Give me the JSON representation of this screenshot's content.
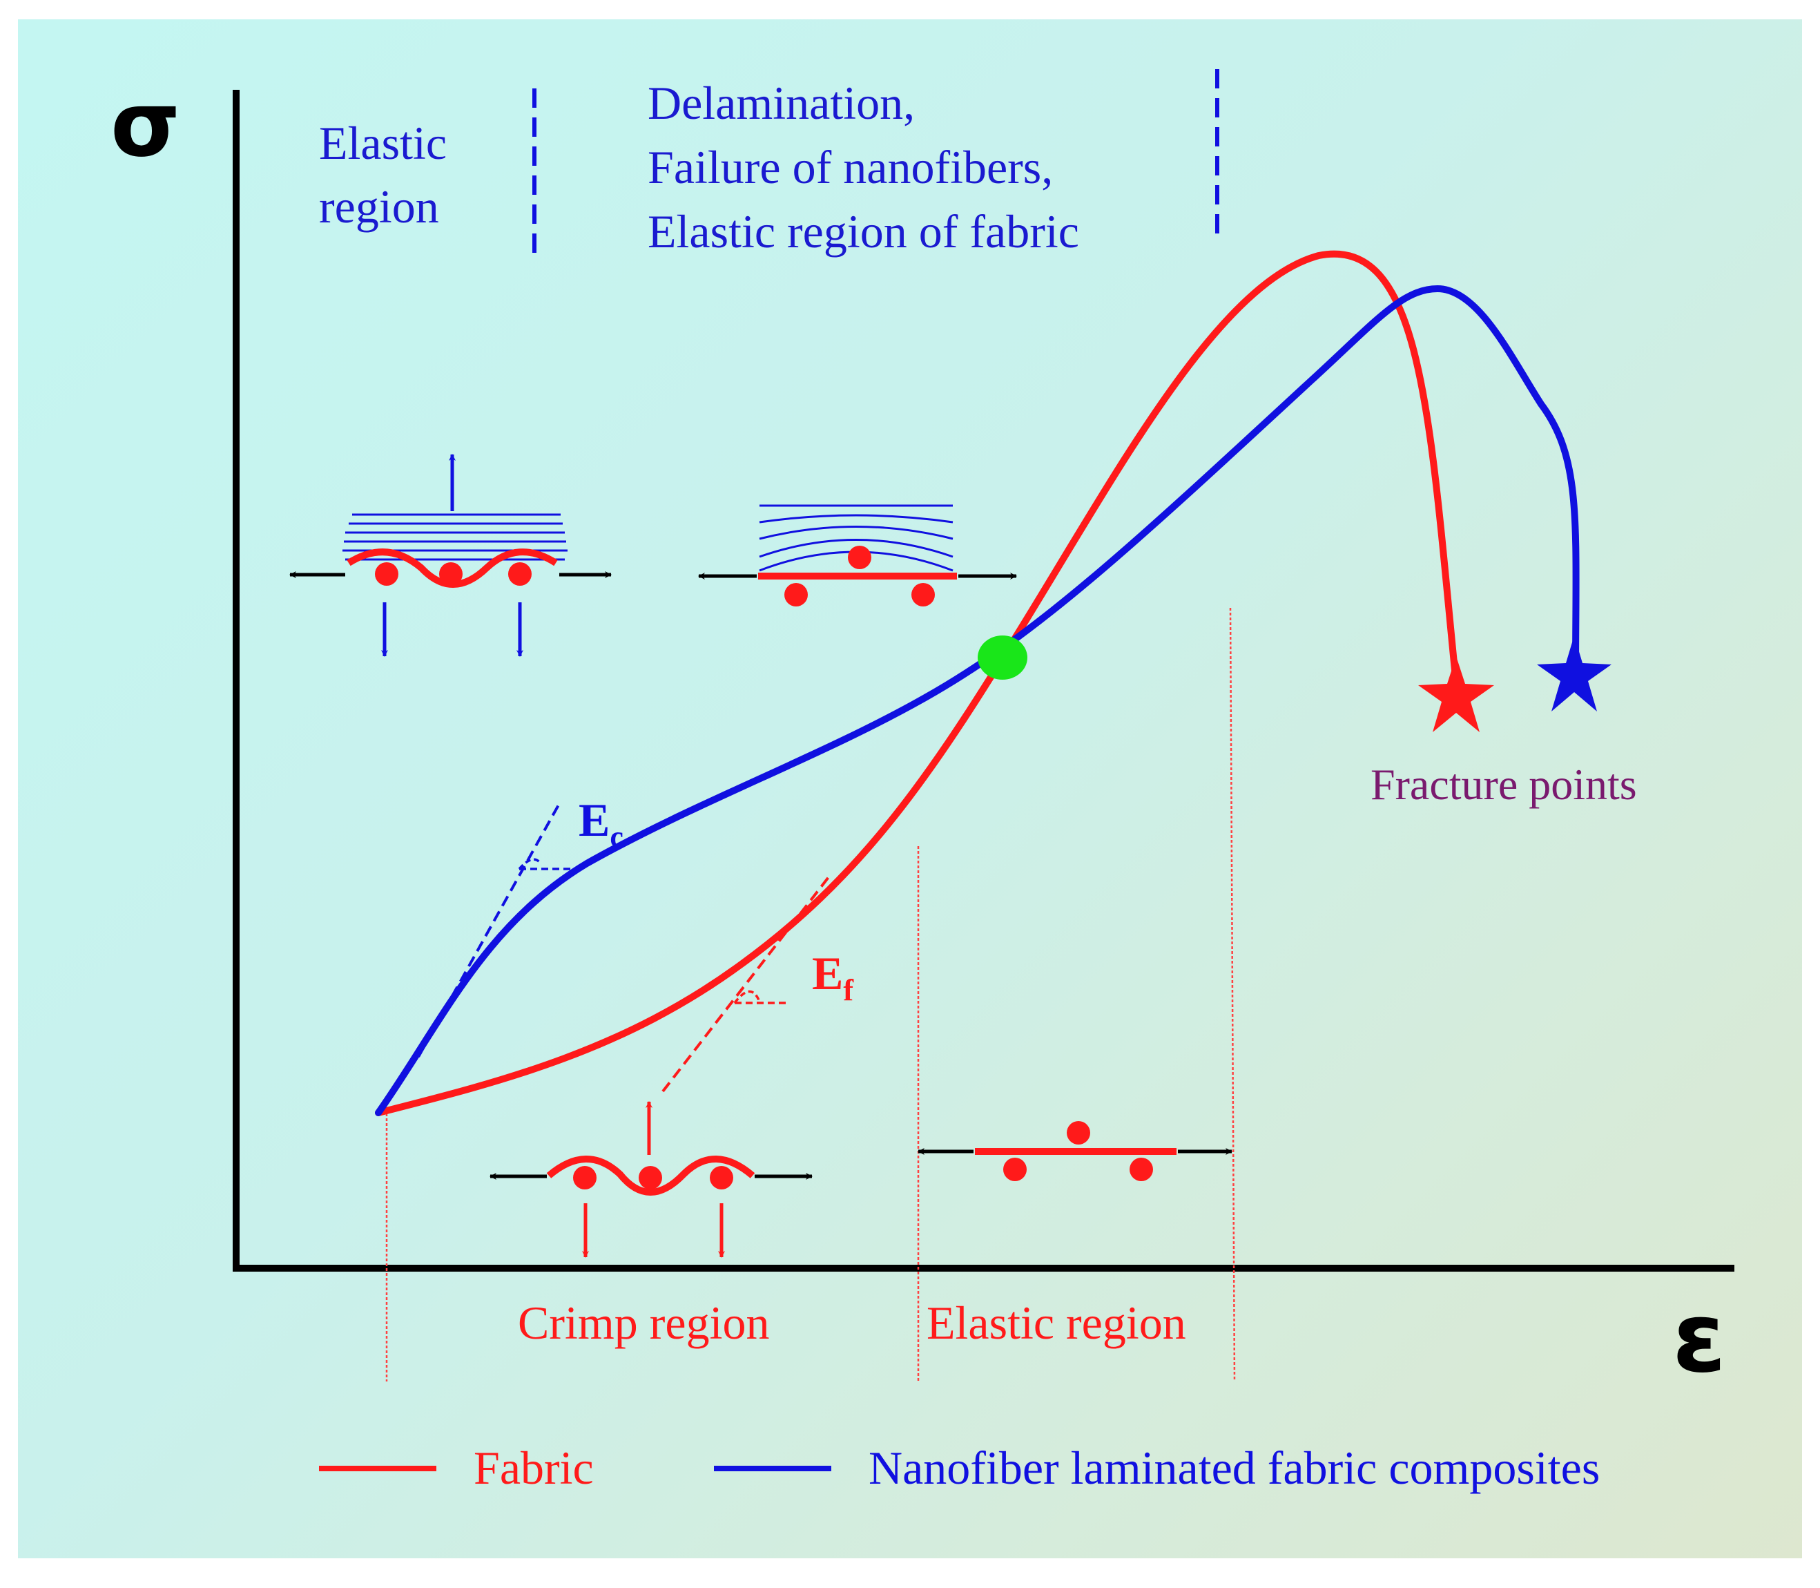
{
  "axes": {
    "y_symbol": "σ",
    "x_symbol": "ε"
  },
  "top_annotations": {
    "elastic_region": [
      "Elastic",
      "region"
    ],
    "delamination": [
      "Delamination,",
      "Failure of nanofibers,",
      "Elastic region of fabric"
    ]
  },
  "slopes": {
    "composite": {
      "base": "E",
      "sub": "c"
    },
    "fabric": {
      "base": "E",
      "sub": "f"
    }
  },
  "fracture_label": "Fracture points",
  "bottom_regions": {
    "crimp": "Crimp region",
    "elastic": "Elastic region"
  },
  "legend": [
    {
      "label": "Fabric",
      "color": "#ff1a1a"
    },
    {
      "label": "Nanofiber laminated fabric composites",
      "color": "#1010e0"
    }
  ],
  "colors": {
    "fabric": "#ff1a1a",
    "composite": "#1010e0",
    "crossing_point": "#19e619",
    "axis": "#000000",
    "fracture_text": "#7a1a6e"
  }
}
